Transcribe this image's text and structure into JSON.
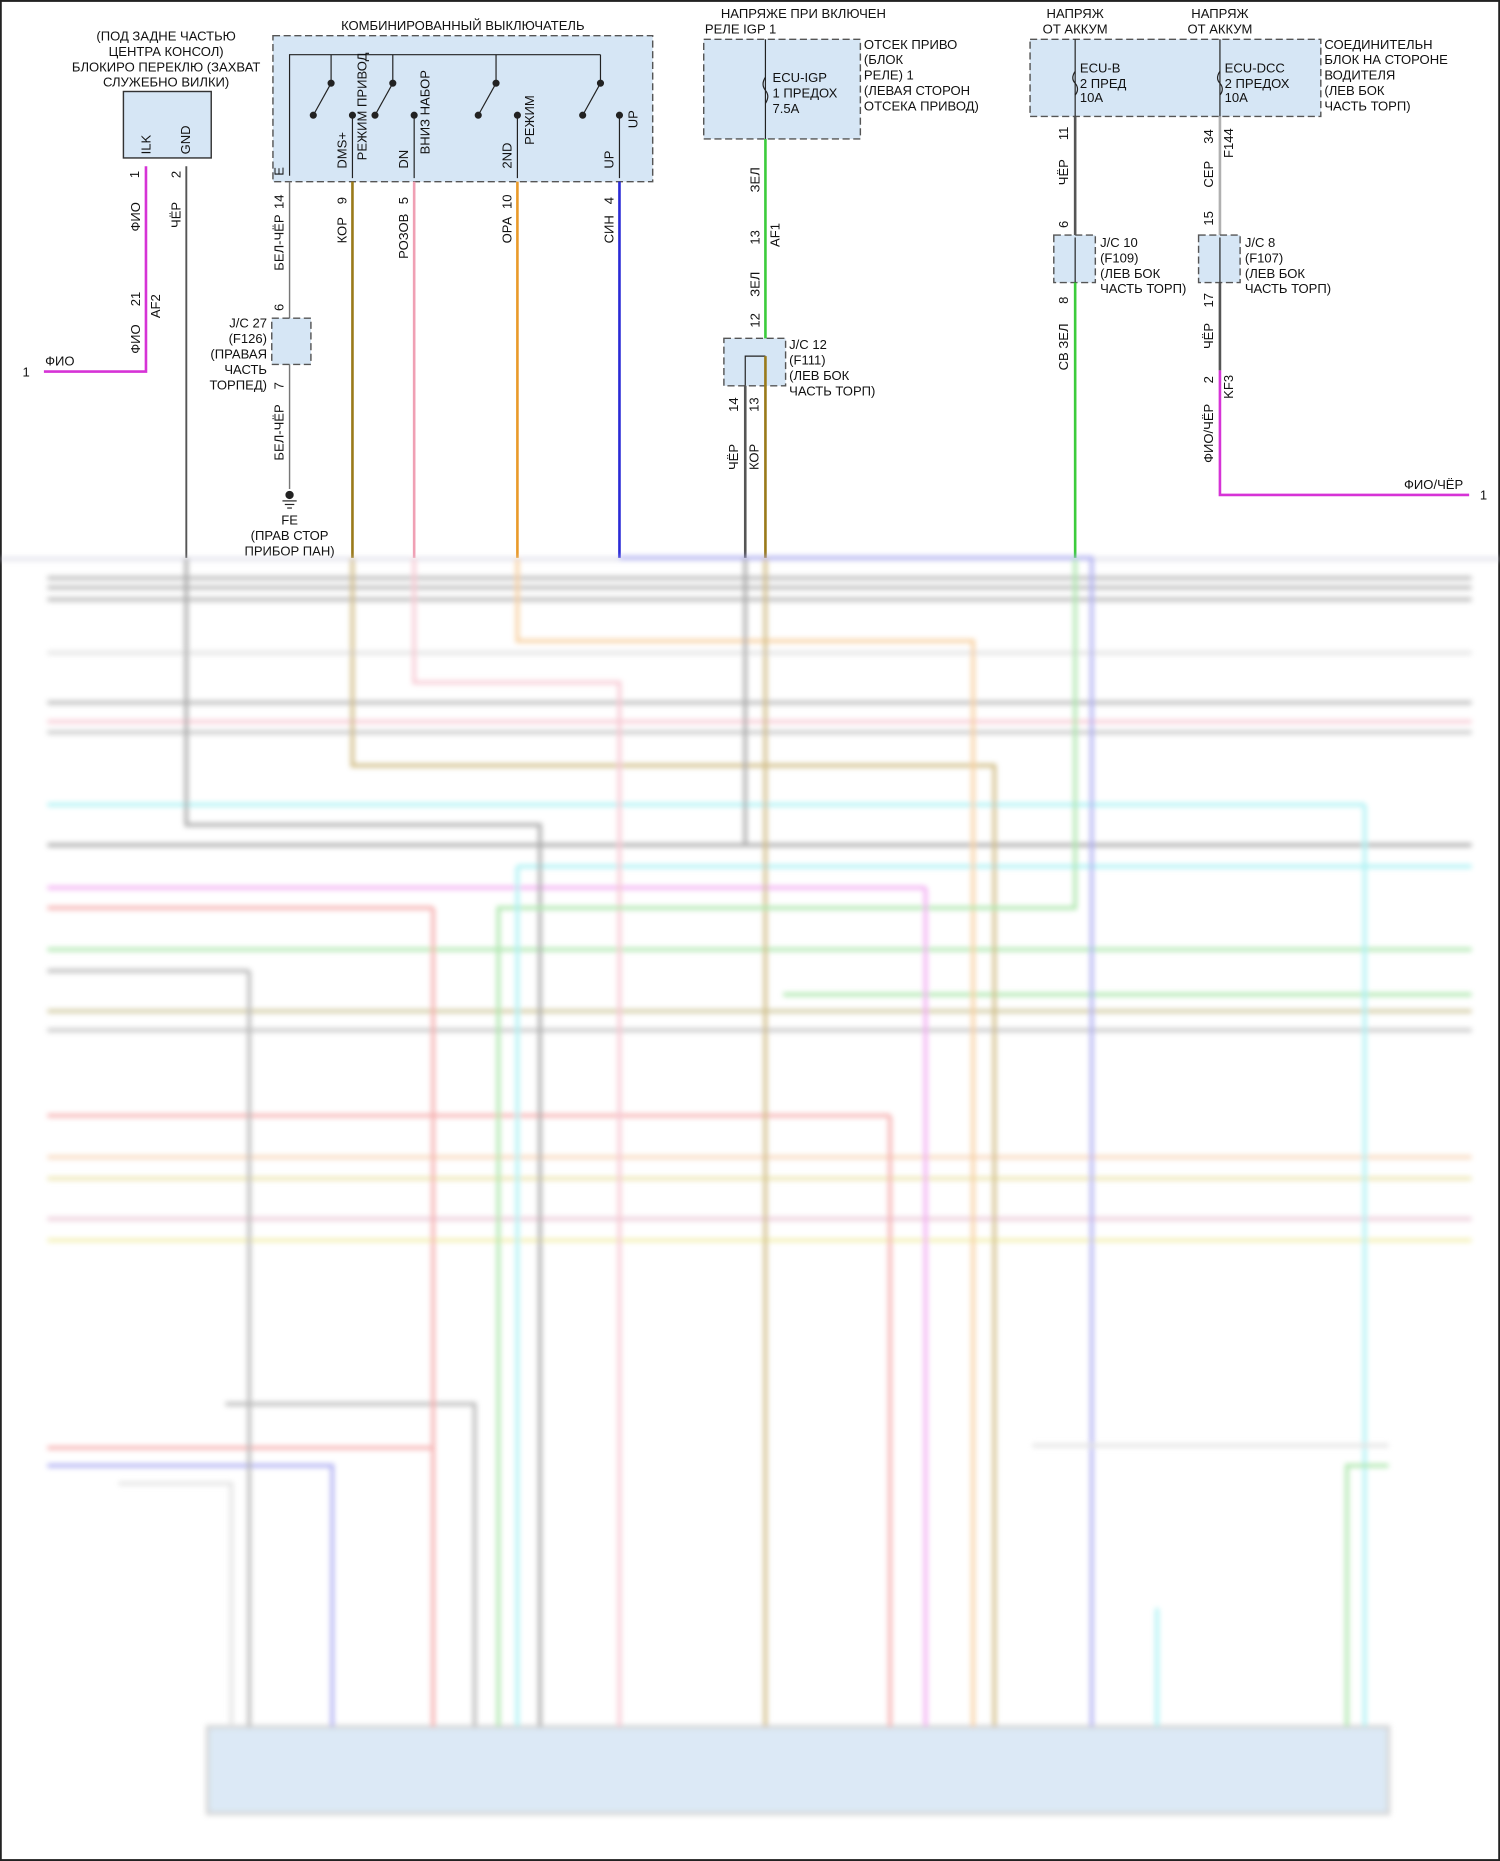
{
  "colors": {
    "magenta": "#d633d6",
    "black": "#555555",
    "brown": "#9a7a1a",
    "pink": "#f0a0b4",
    "orange": "#e99a2a",
    "blue": "#2a2ad6",
    "green": "#3ccc3c",
    "gray": "#b0b0b0",
    "box_fill": "#d6e6f5"
  },
  "interlock": {
    "location": [
      "(ПОД ЗАДНЕ ЧАСТЬЮ",
      "ЦЕНТРА КОНСОЛ)",
      "БЛОКИРО ПЕРЕКЛЮ (ЗАХВАТ",
      "СЛУЖЕБНО ВИЛКИ)"
    ],
    "pins": [
      "ILK",
      "GND"
    ],
    "pin_numbers": [
      "1",
      "2"
    ],
    "wire1": "ФИО",
    "wire2": "ЧЁР",
    "connector": "AF2",
    "connector_pin": "21",
    "wire1b": "ФИО",
    "out_label": "ФИО",
    "out_number": "1"
  },
  "combo_switch": {
    "title": "КОМБИНИРОВАННЫЙ ВЫКЛЮЧАТЕЛЬ",
    "inner_labels": [
      "РЕЖИМ ПРИВОД",
      "ВНИЗ НАБОР",
      "РЕЖИМ",
      "UP"
    ],
    "pins": [
      "E",
      "DMS+",
      "DN",
      "2ND",
      "UP"
    ],
    "pin_numbers": [
      "14",
      "9",
      "5",
      "10",
      "4"
    ],
    "wires": [
      "БЕЛ-ЧЁР",
      "КОР",
      "РОЗОВ",
      "ОРА",
      "СИН"
    ],
    "jc27": [
      "J/C 27",
      "(F126)",
      "(ПРАВАЯ",
      "ЧАСТЬ",
      "ТОРПЕД)"
    ],
    "jc27_pins": [
      "6",
      "7"
    ],
    "ground_wire": "БЕЛ-ЧЁР",
    "ground": [
      "FE",
      "(ПРАВ СТОР",
      "ПРИБОР ПАН)"
    ]
  },
  "igp": {
    "title": [
      "НАПРЯЖЕ ПРИ ВКЛЮЧЕН",
      "РЕЛЕ IGP 1"
    ],
    "fuse": [
      "ECU-IGP",
      "1 ПРЕДОХ",
      "7.5A"
    ],
    "block": [
      "ОТСЕК ПРИВО",
      "(БЛОК",
      "РЕЛЕ) 1",
      "(ЛЕВАЯ СТОРОН",
      "ОТСЕКА ПРИВОД)"
    ],
    "wire": "ЗЕЛ",
    "connector": "AF1",
    "connector_pin": "13",
    "wire2": "ЗЕЛ",
    "pin12": "12",
    "jc12": [
      "J/C 12",
      "(F111)",
      "(ЛЕВ БОК",
      "ЧАСТЬ ТОРП)"
    ],
    "out_pins": [
      "14",
      "13"
    ],
    "out_wires": [
      "ЧЁР",
      "КОР"
    ]
  },
  "battery": {
    "title_b": [
      "НАПРЯЖ",
      "ОТ АККУМ"
    ],
    "title_dcc": [
      "НАПРЯЖ",
      "ОТ АККУМ"
    ],
    "fuse_b": [
      "ECU-B",
      "2 ПРЕД",
      "10A"
    ],
    "fuse_dcc": [
      "ECU-DCC",
      "2 ПРЕДОХ",
      "10A"
    ],
    "block": [
      "СОЕДИНИТЕЛЬН",
      "БЛОК НА СТОРОНЕ",
      "ВОДИТЕЛЯ",
      "(ЛЕВ БОК",
      "ЧАСТЬ ТОРП)"
    ],
    "b_pin": "11",
    "b_wire": "ЧЁР",
    "b_jc_in": "6",
    "b_jc_out": "8",
    "b_wire2": "СВ ЗЕЛ",
    "jc10": [
      "J/C 10",
      "(F109)",
      "(ЛЕВ БОК",
      "ЧАСТЬ ТОРП)"
    ],
    "dcc_pin": "34",
    "dcc_conn": "F144",
    "dcc_wire": "СЕР",
    "dcc_jc_in": "15",
    "dcc_jc_out": "17",
    "dcc_wire2": "ЧЁР",
    "jc8": [
      "J/C 8",
      "(F107)",
      "(ЛЕВ БОК",
      "ЧАСТЬ ТОРП)"
    ],
    "kf3_pin": "2",
    "kf3": "KF3",
    "kf3_wire": "ФИО/ЧЁР",
    "out_label": "ФИО/ЧЁР",
    "out_number": "1"
  }
}
